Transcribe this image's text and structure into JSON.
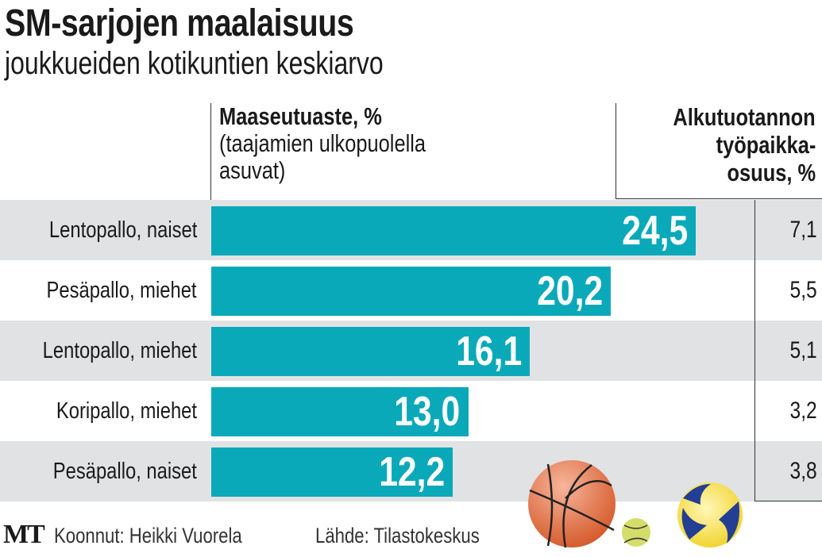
{
  "title": "SM-sarjojen maalaisuus",
  "subtitle": "joukkueiden kotikuntien keskiarvo",
  "chart_data": {
    "type": "bar",
    "orientation": "horizontal",
    "title": "SM-sarjojen maalaisuus",
    "subtitle": "joukkueiden kotikuntien keskiarvo",
    "categories": [
      "Lentopallo, naiset",
      "Pesäpallo, miehet",
      "Lentopallo, miehet",
      "Koripallo, miehet",
      "Pesäpallo, naiset"
    ],
    "series": [
      {
        "name": "Maaseutuaste, %",
        "values": [
          24.5,
          20.2,
          16.1,
          13.0,
          12.2
        ],
        "labels": [
          "24,5",
          "20,2",
          "16,1",
          "13,0",
          "12,2"
        ]
      },
      {
        "name": "Alkutuotannon työpaikkaosuus, %",
        "values": [
          7.1,
          5.5,
          5.1,
          3.2,
          3.8
        ],
        "labels": [
          "7,1",
          "5,5",
          "5,1",
          "3,2",
          "3,8"
        ]
      }
    ],
    "xlim": [
      0,
      25
    ]
  },
  "header1": {
    "bold": "Maaseutuaste, %",
    "line2": "(taajamien ulkopuolella",
    "line3": "asuvat)"
  },
  "header2": {
    "line1": "Alkutuotannon",
    "line2": "työpaikka-",
    "line3": "osuus, %"
  },
  "footer": {
    "logo": "MT",
    "author": "Koonnut: Heikki Vuorela",
    "source": "Lähde: Tilastokeskus"
  },
  "colors": {
    "bar": "#0aa9b9",
    "band": "#e1e2e4"
  }
}
